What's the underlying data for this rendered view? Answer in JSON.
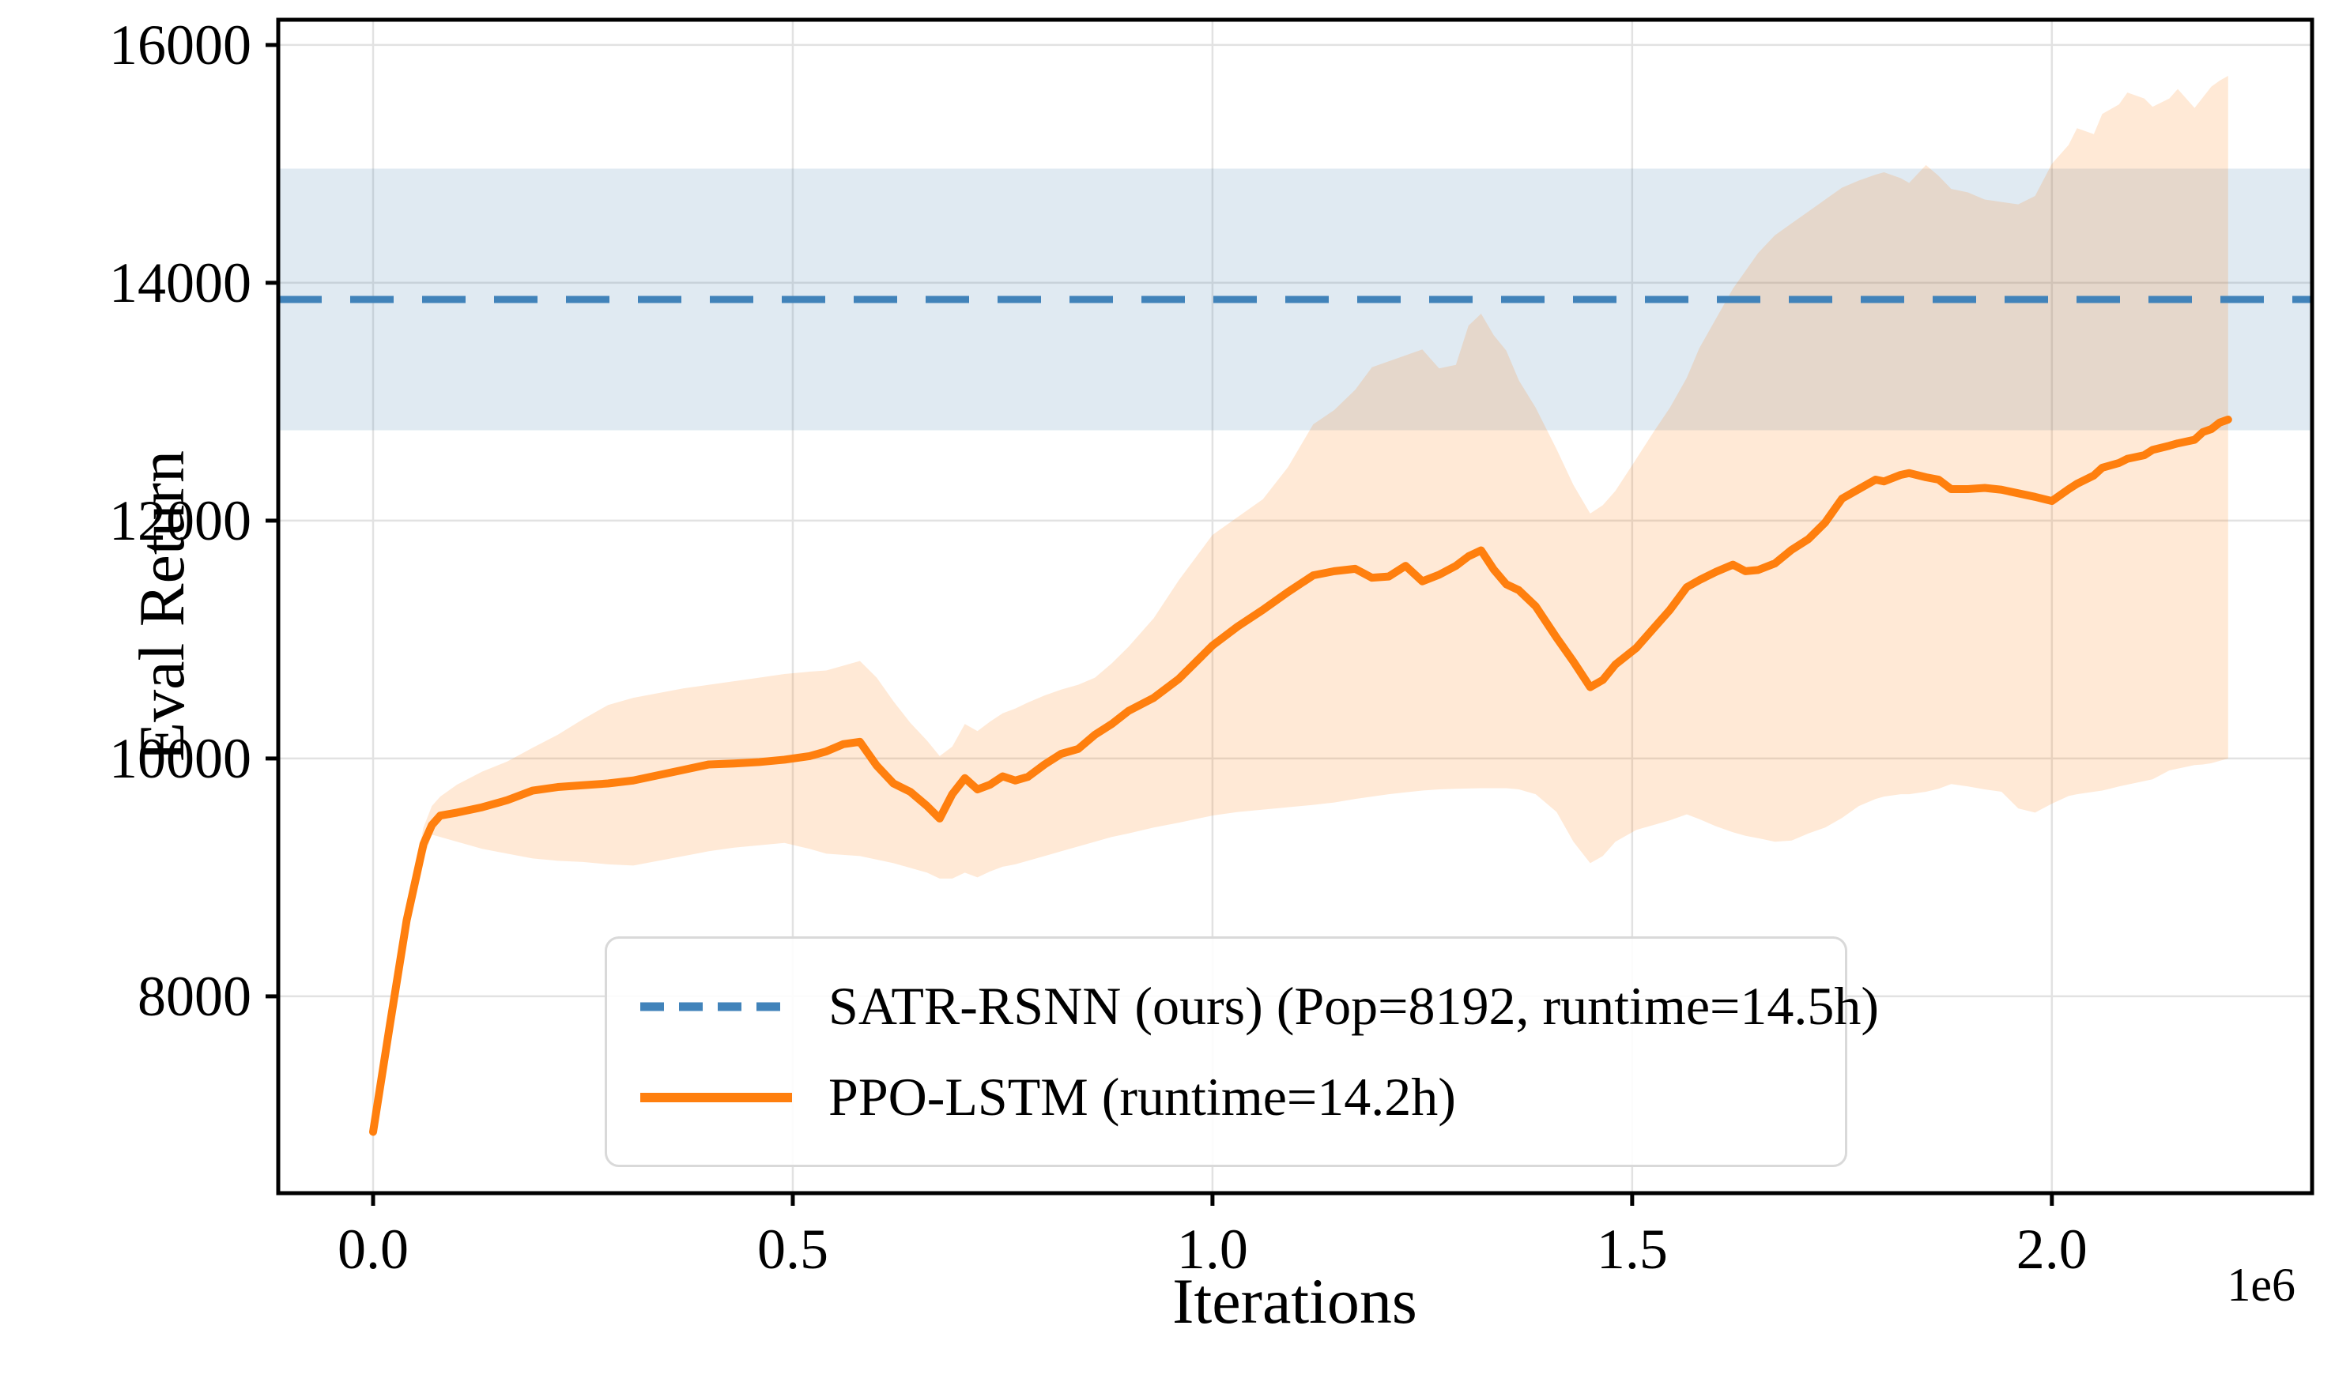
{
  "chart_data": {
    "type": "line",
    "title": "",
    "xlabel": "Iterations",
    "ylabel": "Eval Return",
    "x_offset_label": "1e6",
    "x_unit_multiplier": 1000000,
    "xlim": [
      -0.113,
      2.31
    ],
    "ylim": [
      6345,
      16212
    ],
    "x_ticks": [
      0.0,
      0.5,
      1.0,
      1.5,
      2.0
    ],
    "x_tick_labels": [
      "0.0",
      "0.5",
      "1.0",
      "1.5",
      "2.0"
    ],
    "y_ticks": [
      8000,
      10000,
      12000,
      14000,
      16000
    ],
    "y_tick_labels": [
      "8000",
      "10000",
      "12000",
      "14000",
      "16000"
    ],
    "grid": true,
    "colors": {
      "satr_line": "#4183ba",
      "satr_band": "rgba(70,130,180,0.17)",
      "ppo_line": "#ff7f0e",
      "ppo_band": "rgba(255,127,14,0.17)",
      "grid": "#e2e2e2",
      "frame": "#000000"
    },
    "legend_position": "lower center",
    "series": [
      {
        "name": "SATR-RSNN (ours) (Pop=8192, runtime=14.5h)",
        "type": "hline",
        "style": "dashed",
        "mean": 13860,
        "band": [
          12760,
          14960
        ]
      },
      {
        "name": "PPO-LSTM (runtime=14.2h)",
        "type": "line",
        "style": "solid",
        "x": [
          0,
          0.02,
          0.04,
          0.06,
          0.07,
          0.08,
          0.1,
          0.13,
          0.16,
          0.19,
          0.22,
          0.25,
          0.28,
          0.31,
          0.34,
          0.37,
          0.4,
          0.43,
          0.46,
          0.49,
          0.52,
          0.54,
          0.56,
          0.58,
          0.6,
          0.62,
          0.64,
          0.66,
          0.675,
          0.69,
          0.705,
          0.72,
          0.735,
          0.75,
          0.765,
          0.78,
          0.8,
          0.82,
          0.84,
          0.86,
          0.88,
          0.9,
          0.93,
          0.96,
          1.0,
          1.03,
          1.06,
          1.09,
          1.12,
          1.145,
          1.17,
          1.19,
          1.21,
          1.23,
          1.25,
          1.27,
          1.29,
          1.305,
          1.32,
          1.335,
          1.35,
          1.365,
          1.385,
          1.41,
          1.43,
          1.45,
          1.465,
          1.48,
          1.505,
          1.525,
          1.545,
          1.565,
          1.58,
          1.6,
          1.62,
          1.635,
          1.65,
          1.67,
          1.69,
          1.71,
          1.73,
          1.75,
          1.77,
          1.79,
          1.8,
          1.82,
          1.83,
          1.85,
          1.865,
          1.88,
          1.9,
          1.92,
          1.94,
          1.96,
          1.98,
          2.0,
          2.02,
          2.03,
          2.05,
          2.06,
          2.08,
          2.09,
          2.11,
          2.12,
          2.14,
          2.15,
          2.17,
          2.18,
          2.19,
          2.2,
          2.21
        ],
        "y": [
          6860,
          7760,
          8640,
          9280,
          9440,
          9520,
          9545,
          9590,
          9650,
          9730,
          9760,
          9775,
          9790,
          9815,
          9860,
          9905,
          9950,
          9958,
          9970,
          9990,
          10020,
          10060,
          10120,
          10140,
          9940,
          9790,
          9720,
          9600,
          9495,
          9700,
          9835,
          9740,
          9780,
          9850,
          9815,
          9845,
          9950,
          10040,
          10080,
          10200,
          10290,
          10400,
          10510,
          10670,
          10950,
          11110,
          11250,
          11400,
          11540,
          11575,
          11595,
          11520,
          11530,
          11620,
          11490,
          11545,
          11620,
          11700,
          11750,
          11590,
          11465,
          11415,
          11280,
          11015,
          10815,
          10600,
          10660,
          10790,
          10930,
          11090,
          11250,
          11440,
          11500,
          11570,
          11630,
          11575,
          11585,
          11640,
          11755,
          11845,
          11985,
          12185,
          12265,
          12345,
          12330,
          12385,
          12400,
          12365,
          12345,
          12265,
          12265,
          12275,
          12260,
          12230,
          12200,
          12165,
          12265,
          12310,
          12380,
          12445,
          12485,
          12520,
          12550,
          12595,
          12630,
          12650,
          12680,
          12745,
          12770,
          12825,
          12850
        ],
        "band_low": [
          6860,
          7700,
          8570,
          9150,
          9360,
          9340,
          9300,
          9240,
          9200,
          9160,
          9140,
          9130,
          9110,
          9100,
          9140,
          9180,
          9220,
          9250,
          9270,
          9290,
          9240,
          9200,
          9190,
          9180,
          9150,
          9120,
          9080,
          9040,
          8990,
          8990,
          9040,
          9000,
          9050,
          9090,
          9110,
          9140,
          9180,
          9220,
          9260,
          9300,
          9340,
          9370,
          9420,
          9460,
          9520,
          9550,
          9570,
          9590,
          9610,
          9630,
          9660,
          9680,
          9700,
          9715,
          9730,
          9740,
          9745,
          9748,
          9750,
          9750,
          9750,
          9740,
          9700,
          9550,
          9300,
          9120,
          9180,
          9300,
          9400,
          9440,
          9480,
          9530,
          9490,
          9430,
          9380,
          9350,
          9330,
          9300,
          9310,
          9370,
          9420,
          9500,
          9600,
          9660,
          9680,
          9700,
          9700,
          9720,
          9745,
          9785,
          9765,
          9740,
          9720,
          9580,
          9545,
          9620,
          9685,
          9700,
          9720,
          9730,
          9765,
          9780,
          9810,
          9825,
          9900,
          9915,
          9945,
          9950,
          9960,
          9980,
          10000
        ],
        "band_high": [
          6860,
          7820,
          8720,
          9420,
          9600,
          9680,
          9780,
          9890,
          9975,
          10090,
          10200,
          10330,
          10450,
          10510,
          10550,
          10590,
          10620,
          10650,
          10680,
          10710,
          10730,
          10740,
          10780,
          10820,
          10680,
          10480,
          10300,
          10150,
          10020,
          10100,
          10290,
          10230,
          10310,
          10380,
          10420,
          10470,
          10530,
          10580,
          10620,
          10680,
          10800,
          10940,
          11180,
          11500,
          11880,
          12030,
          12180,
          12450,
          12810,
          12930,
          13100,
          13290,
          13340,
          13390,
          13440,
          13280,
          13310,
          13640,
          13740,
          13560,
          13430,
          13180,
          12950,
          12600,
          12300,
          12060,
          12130,
          12250,
          12520,
          12740,
          12950,
          13200,
          13450,
          13700,
          13950,
          14100,
          14250,
          14400,
          14500,
          14600,
          14700,
          14800,
          14860,
          14910,
          14930,
          14880,
          14840,
          14990,
          14900,
          14790,
          14760,
          14700,
          14680,
          14660,
          14730,
          15000,
          15160,
          15300,
          15250,
          15420,
          15500,
          15600,
          15550,
          15480,
          15550,
          15630,
          15470,
          15560,
          15650,
          15700,
          15740
        ]
      }
    ]
  }
}
